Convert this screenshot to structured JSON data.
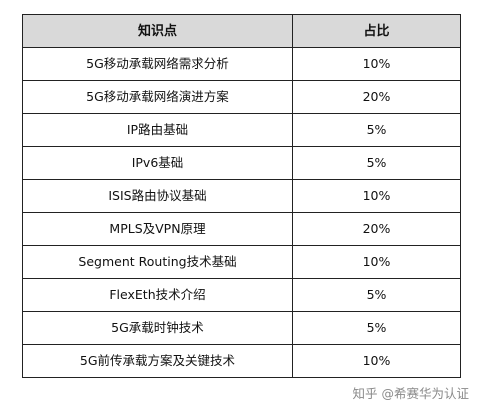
{
  "table": {
    "headers": [
      "知识点",
      "占比"
    ],
    "rows": [
      {
        "topic": "5G移动承载网络需求分析",
        "percent": "10%"
      },
      {
        "topic": "5G移动承载网络演进方案",
        "percent": "20%"
      },
      {
        "topic": "IP路由基础",
        "percent": "5%"
      },
      {
        "topic": "IPv6基础",
        "percent": "5%"
      },
      {
        "topic": "ISIS路由协议基础",
        "percent": "10%"
      },
      {
        "topic": "MPLS及VPN原理",
        "percent": "20%"
      },
      {
        "topic": "Segment Routing技术基础",
        "percent": "10%"
      },
      {
        "topic": "FlexEth技术介绍",
        "percent": "5%"
      },
      {
        "topic": "5G承载时钟技术",
        "percent": "5%"
      },
      {
        "topic": "5G前传承载方案及关键技术",
        "percent": "10%"
      }
    ]
  },
  "watermark": "知乎 @希赛华为认证"
}
